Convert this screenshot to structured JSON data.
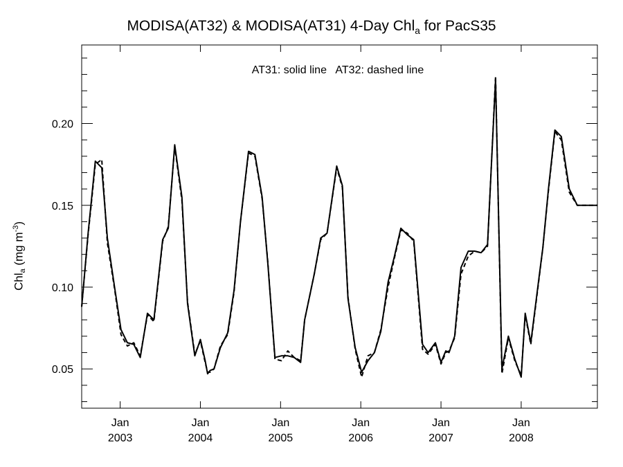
{
  "chart_data": {
    "type": "line",
    "title": {
      "prefix": "MODISA(AT32) & MODISA(AT31) 4-Day Chl",
      "subscript": "a",
      "suffix": " for PacS35"
    },
    "ylabel": {
      "base": "Chl",
      "subscript": "a",
      "mid": " (mg m",
      "superscript": "-3",
      "end": ")"
    },
    "xlabel": "",
    "annotation": "AT31: solid line   AT32: dashed line",
    "xlim": [
      2002.52,
      2008.95
    ],
    "ylim": [
      0.026,
      0.248
    ],
    "x_ticks": [
      {
        "x": 2003.0,
        "month": "Jan",
        "year": "2003"
      },
      {
        "x": 2004.0,
        "month": "Jan",
        "year": "2004"
      },
      {
        "x": 2005.0,
        "month": "Jan",
        "year": "2005"
      },
      {
        "x": 2006.0,
        "month": "Jan",
        "year": "2006"
      },
      {
        "x": 2007.0,
        "month": "Jan",
        "year": "2007"
      },
      {
        "x": 2008.0,
        "month": "Jan",
        "year": "2008"
      }
    ],
    "y_ticks": [
      {
        "y": 0.05,
        "label": "0.05"
      },
      {
        "y": 0.1,
        "label": "0.10"
      },
      {
        "y": 0.15,
        "label": "0.15"
      },
      {
        "y": 0.2,
        "label": "0.20"
      }
    ],
    "y_minor_ticks": [
      0.03,
      0.04,
      0.06,
      0.07,
      0.08,
      0.09,
      0.11,
      0.12,
      0.13,
      0.14,
      0.16,
      0.17,
      0.18,
      0.19,
      0.21,
      0.22,
      0.23,
      0.24
    ],
    "grid": false,
    "series": [
      {
        "line_style": "solid",
        "x": [
          2002.52,
          2002.6,
          2002.69,
          2002.77,
          2002.84,
          2002.93,
          2003.01,
          2003.09,
          2003.17,
          2003.25,
          2003.34,
          2003.42,
          2003.53,
          2003.6,
          2003.68,
          2003.77,
          2003.84,
          2003.93,
          2004.0,
          2004.06,
          2004.09,
          2004.12,
          2004.17,
          2004.25,
          2004.34,
          2004.42,
          2004.5,
          2004.6,
          2004.68,
          2004.77,
          2004.84,
          2004.93,
          2005.01,
          2005.09,
          2005.17,
          2005.25,
          2005.3,
          2005.42,
          2005.5,
          2005.58,
          2005.7,
          2005.77,
          2005.84,
          2005.93,
          2006.01,
          2006.09,
          2006.17,
          2006.25,
          2006.34,
          2006.42,
          2006.5,
          2006.58,
          2006.66,
          2006.77,
          2006.84,
          2006.93,
          2007.0,
          2007.06,
          2007.1,
          2007.17,
          2007.25,
          2007.34,
          2007.42,
          2007.5,
          2007.58,
          2007.68,
          2007.76,
          2007.84,
          2007.92,
          2008.0,
          2008.05,
          2008.12,
          2008.22,
          2008.27,
          2008.34,
          2008.42,
          2008.5,
          2008.6,
          2008.7,
          2008.8,
          2008.88,
          2008.95
        ],
        "y": [
          0.088,
          0.133,
          0.177,
          0.173,
          0.13,
          0.1,
          0.074,
          0.066,
          0.065,
          0.057,
          0.084,
          0.08,
          0.129,
          0.136,
          0.187,
          0.155,
          0.09,
          0.058,
          0.068,
          0.055,
          0.047,
          0.049,
          0.05,
          0.063,
          0.072,
          0.098,
          0.14,
          0.183,
          0.181,
          0.155,
          0.115,
          0.057,
          0.058,
          0.058,
          0.057,
          0.054,
          0.08,
          0.108,
          0.13,
          0.133,
          0.174,
          0.162,
          0.093,
          0.063,
          0.048,
          0.055,
          0.06,
          0.073,
          0.103,
          0.119,
          0.136,
          0.132,
          0.129,
          0.065,
          0.06,
          0.066,
          0.054,
          0.061,
          0.06,
          0.07,
          0.112,
          0.122,
          0.122,
          0.121,
          0.126,
          0.227,
          0.05,
          0.07,
          0.056,
          0.045,
          0.084,
          0.066,
          0.105,
          0.124,
          0.16,
          0.196,
          0.192,
          0.16,
          0.15,
          0.15,
          0.15,
          0.15
        ]
      },
      {
        "line_style": "dashed",
        "x": [
          2002.52,
          2002.6,
          2002.69,
          2002.77,
          2002.84,
          2002.93,
          2003.01,
          2003.09,
          2003.17,
          2003.25,
          2003.34,
          2003.42,
          2003.53,
          2003.6,
          2003.68,
          2003.77,
          2003.84,
          2003.93,
          2004.0,
          2004.06,
          2004.09,
          2004.12,
          2004.17,
          2004.25,
          2004.34,
          2004.42,
          2004.5,
          2004.6,
          2004.68,
          2004.77,
          2004.84,
          2004.93,
          2005.01,
          2005.09,
          2005.17,
          2005.25,
          2005.3,
          2005.42,
          2005.5,
          2005.58,
          2005.7,
          2005.77,
          2005.84,
          2005.93,
          2006.01,
          2006.09,
          2006.17,
          2006.25,
          2006.34,
          2006.42,
          2006.5,
          2006.58,
          2006.66,
          2006.77,
          2006.84,
          2006.93,
          2007.0,
          2007.06,
          2007.1,
          2007.17,
          2007.25,
          2007.34,
          2007.42,
          2007.5,
          2007.58,
          2007.68,
          2007.76,
          2007.84,
          2007.92,
          2008.0,
          2008.05,
          2008.12,
          2008.22,
          2008.27,
          2008.34,
          2008.42,
          2008.5,
          2008.6,
          2008.7,
          2008.8,
          2008.88,
          2008.95
        ],
        "y": [
          0.088,
          0.132,
          0.175,
          0.178,
          0.127,
          0.099,
          0.071,
          0.064,
          0.066,
          0.058,
          0.083,
          0.079,
          0.128,
          0.137,
          0.186,
          0.153,
          0.091,
          0.059,
          0.067,
          0.054,
          0.048,
          0.048,
          0.05,
          0.064,
          0.071,
          0.097,
          0.14,
          0.182,
          0.18,
          0.154,
          0.116,
          0.056,
          0.055,
          0.061,
          0.057,
          0.055,
          0.08,
          0.108,
          0.129,
          0.133,
          0.173,
          0.161,
          0.094,
          0.062,
          0.045,
          0.058,
          0.06,
          0.074,
          0.1,
          0.118,
          0.135,
          0.133,
          0.128,
          0.062,
          0.059,
          0.065,
          0.053,
          0.06,
          0.061,
          0.069,
          0.108,
          0.119,
          0.122,
          0.121,
          0.125,
          0.229,
          0.047,
          0.069,
          0.055,
          0.046,
          0.083,
          0.065,
          0.104,
          0.124,
          0.159,
          0.195,
          0.19,
          0.158,
          0.15,
          0.15,
          0.15,
          0.15
        ]
      }
    ]
  }
}
